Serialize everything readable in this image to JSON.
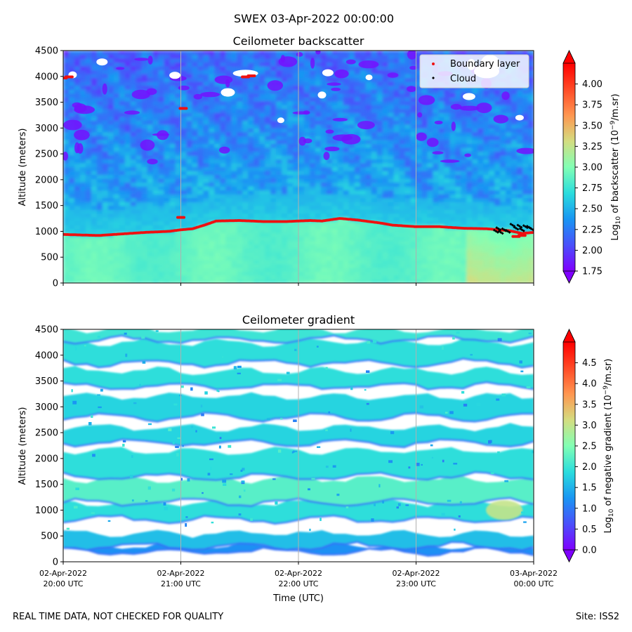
{
  "suptitle": "SWEX 03-Apr-2022 00:00:00",
  "footer": {
    "left": "REAL TIME DATA, NOT CHECKED FOR QUALITY",
    "right": "Site: ISS2"
  },
  "colors": {
    "boundary_layer": "#ee1111",
    "cloud": "#000000",
    "colormap": [
      "#7f00ff",
      "#4a50fb",
      "#1996f3",
      "#2adddd",
      "#82ffb4",
      "#d4dd80",
      "#ff9650",
      "#ff4a26",
      "#ff0000"
    ]
  },
  "chart_data": [
    {
      "type": "heatmap",
      "title": "Ceilometer backscatter",
      "xlabel": "",
      "ylabel": "Altitude (meters)",
      "xlim": [
        0,
        4
      ],
      "ylim": [
        0,
        4500
      ],
      "yticks": [
        0,
        500,
        1000,
        1500,
        2000,
        2500,
        3000,
        3500,
        4000,
        4500
      ],
      "grid": "vertical",
      "vmin": 1.75,
      "vmax": 4.25,
      "colorbar": {
        "label": "Log10 of backscatter (10^-9/m.sr)",
        "ticks": [
          "1.75",
          "2.00",
          "2.25",
          "2.50",
          "2.75",
          "3.00",
          "3.25",
          "3.50",
          "3.75",
          "4.00"
        ],
        "tick_values": [
          1.75,
          2.0,
          2.25,
          2.5,
          2.75,
          3.0,
          3.25,
          3.5,
          3.75,
          4.0
        ],
        "extend": "both"
      },
      "legend": {
        "placement": "top-right",
        "entries": [
          {
            "label": "Boundary layer",
            "color": "#ee1111"
          },
          {
            "label": "Cloud",
            "color": "#000000"
          }
        ]
      },
      "series": [
        {
          "name": "Boundary layer",
          "type": "scatter",
          "x": [
            0.0,
            0.3,
            0.5,
            0.7,
            0.9,
            1.0,
            1.1,
            1.2,
            1.3,
            1.5,
            1.7,
            1.9,
            2.0,
            2.1,
            2.2,
            2.35,
            2.5,
            2.7,
            2.8,
            3.0,
            3.2,
            3.4,
            3.6,
            3.8,
            3.9,
            4.0
          ],
          "y": [
            940,
            920,
            950,
            980,
            1000,
            1030,
            1050,
            1120,
            1200,
            1210,
            1190,
            1190,
            1200,
            1210,
            1200,
            1250,
            1220,
            1160,
            1120,
            1090,
            1090,
            1060,
            1050,
            1010,
            960,
            980
          ],
          "extra_x": [
            0.0,
            0.05,
            1.0,
            1.02,
            1.55,
            1.6,
            3.85,
            3.9
          ],
          "extra_y": [
            3970,
            3990,
            1270,
            3380,
            3990,
            4010,
            900,
            920
          ]
        },
        {
          "name": "Cloud",
          "type": "scatter",
          "x": [
            3.68,
            3.7,
            3.72,
            3.75,
            3.78,
            3.82,
            3.85,
            3.88,
            3.9,
            3.93,
            3.96,
            3.98
          ],
          "y": [
            1000,
            1050,
            980,
            1030,
            1000,
            1120,
            1060,
            1100,
            1030,
            1090,
            1080,
            1050
          ]
        }
      ]
    },
    {
      "type": "heatmap",
      "title": "Ceilometer gradient",
      "xlabel": "Time (UTC)",
      "ylabel": "Altitude (meters)",
      "xlim": [
        0,
        4
      ],
      "ylim": [
        0,
        4500
      ],
      "yticks": [
        0,
        500,
        1000,
        1500,
        2000,
        2500,
        3000,
        3500,
        4000,
        4500
      ],
      "xticks": [
        {
          "line1": "02-Apr-2022",
          "line2": "20:00 UTC"
        },
        {
          "line1": "02-Apr-2022",
          "line2": "21:00 UTC"
        },
        {
          "line1": "02-Apr-2022",
          "line2": "22:00 UTC"
        },
        {
          "line1": "02-Apr-2022",
          "line2": "23:00 UTC"
        },
        {
          "line1": "03-Apr-2022",
          "line2": "00:00 UTC"
        }
      ],
      "grid": "vertical",
      "vmin": 0.0,
      "vmax": 5.0,
      "colorbar": {
        "label": "Log10 of negative gradient (10^-9/m.sr)",
        "ticks": [
          "0.0",
          "0.5",
          "1.0",
          "1.5",
          "2.0",
          "2.5",
          "3.0",
          "3.5",
          "4.0",
          "4.5"
        ],
        "tick_values": [
          0.0,
          0.5,
          1.0,
          1.5,
          2.0,
          2.5,
          3.0,
          3.5,
          4.0,
          4.5
        ],
        "extend": "both"
      },
      "bands_m": [
        {
          "bottom": 200,
          "top": 300,
          "value": 1.2
        },
        {
          "bottom": 300,
          "top": 550,
          "value": 1.6
        },
        {
          "bottom": 820,
          "top": 1150,
          "value": 1.9
        },
        {
          "bottom": 1150,
          "top": 1600,
          "value": 2.2
        },
        {
          "bottom": 1650,
          "top": 2150,
          "value": 1.9
        },
        {
          "bottom": 2300,
          "top": 2600,
          "value": 1.8
        },
        {
          "bottom": 2800,
          "top": 3200,
          "value": 1.8
        },
        {
          "bottom": 3400,
          "top": 3700,
          "value": 1.9
        },
        {
          "bottom": 3850,
          "top": 4250,
          "value": 1.9
        },
        {
          "bottom": 4300,
          "top": 4500,
          "value": 2.0
        }
      ]
    }
  ]
}
